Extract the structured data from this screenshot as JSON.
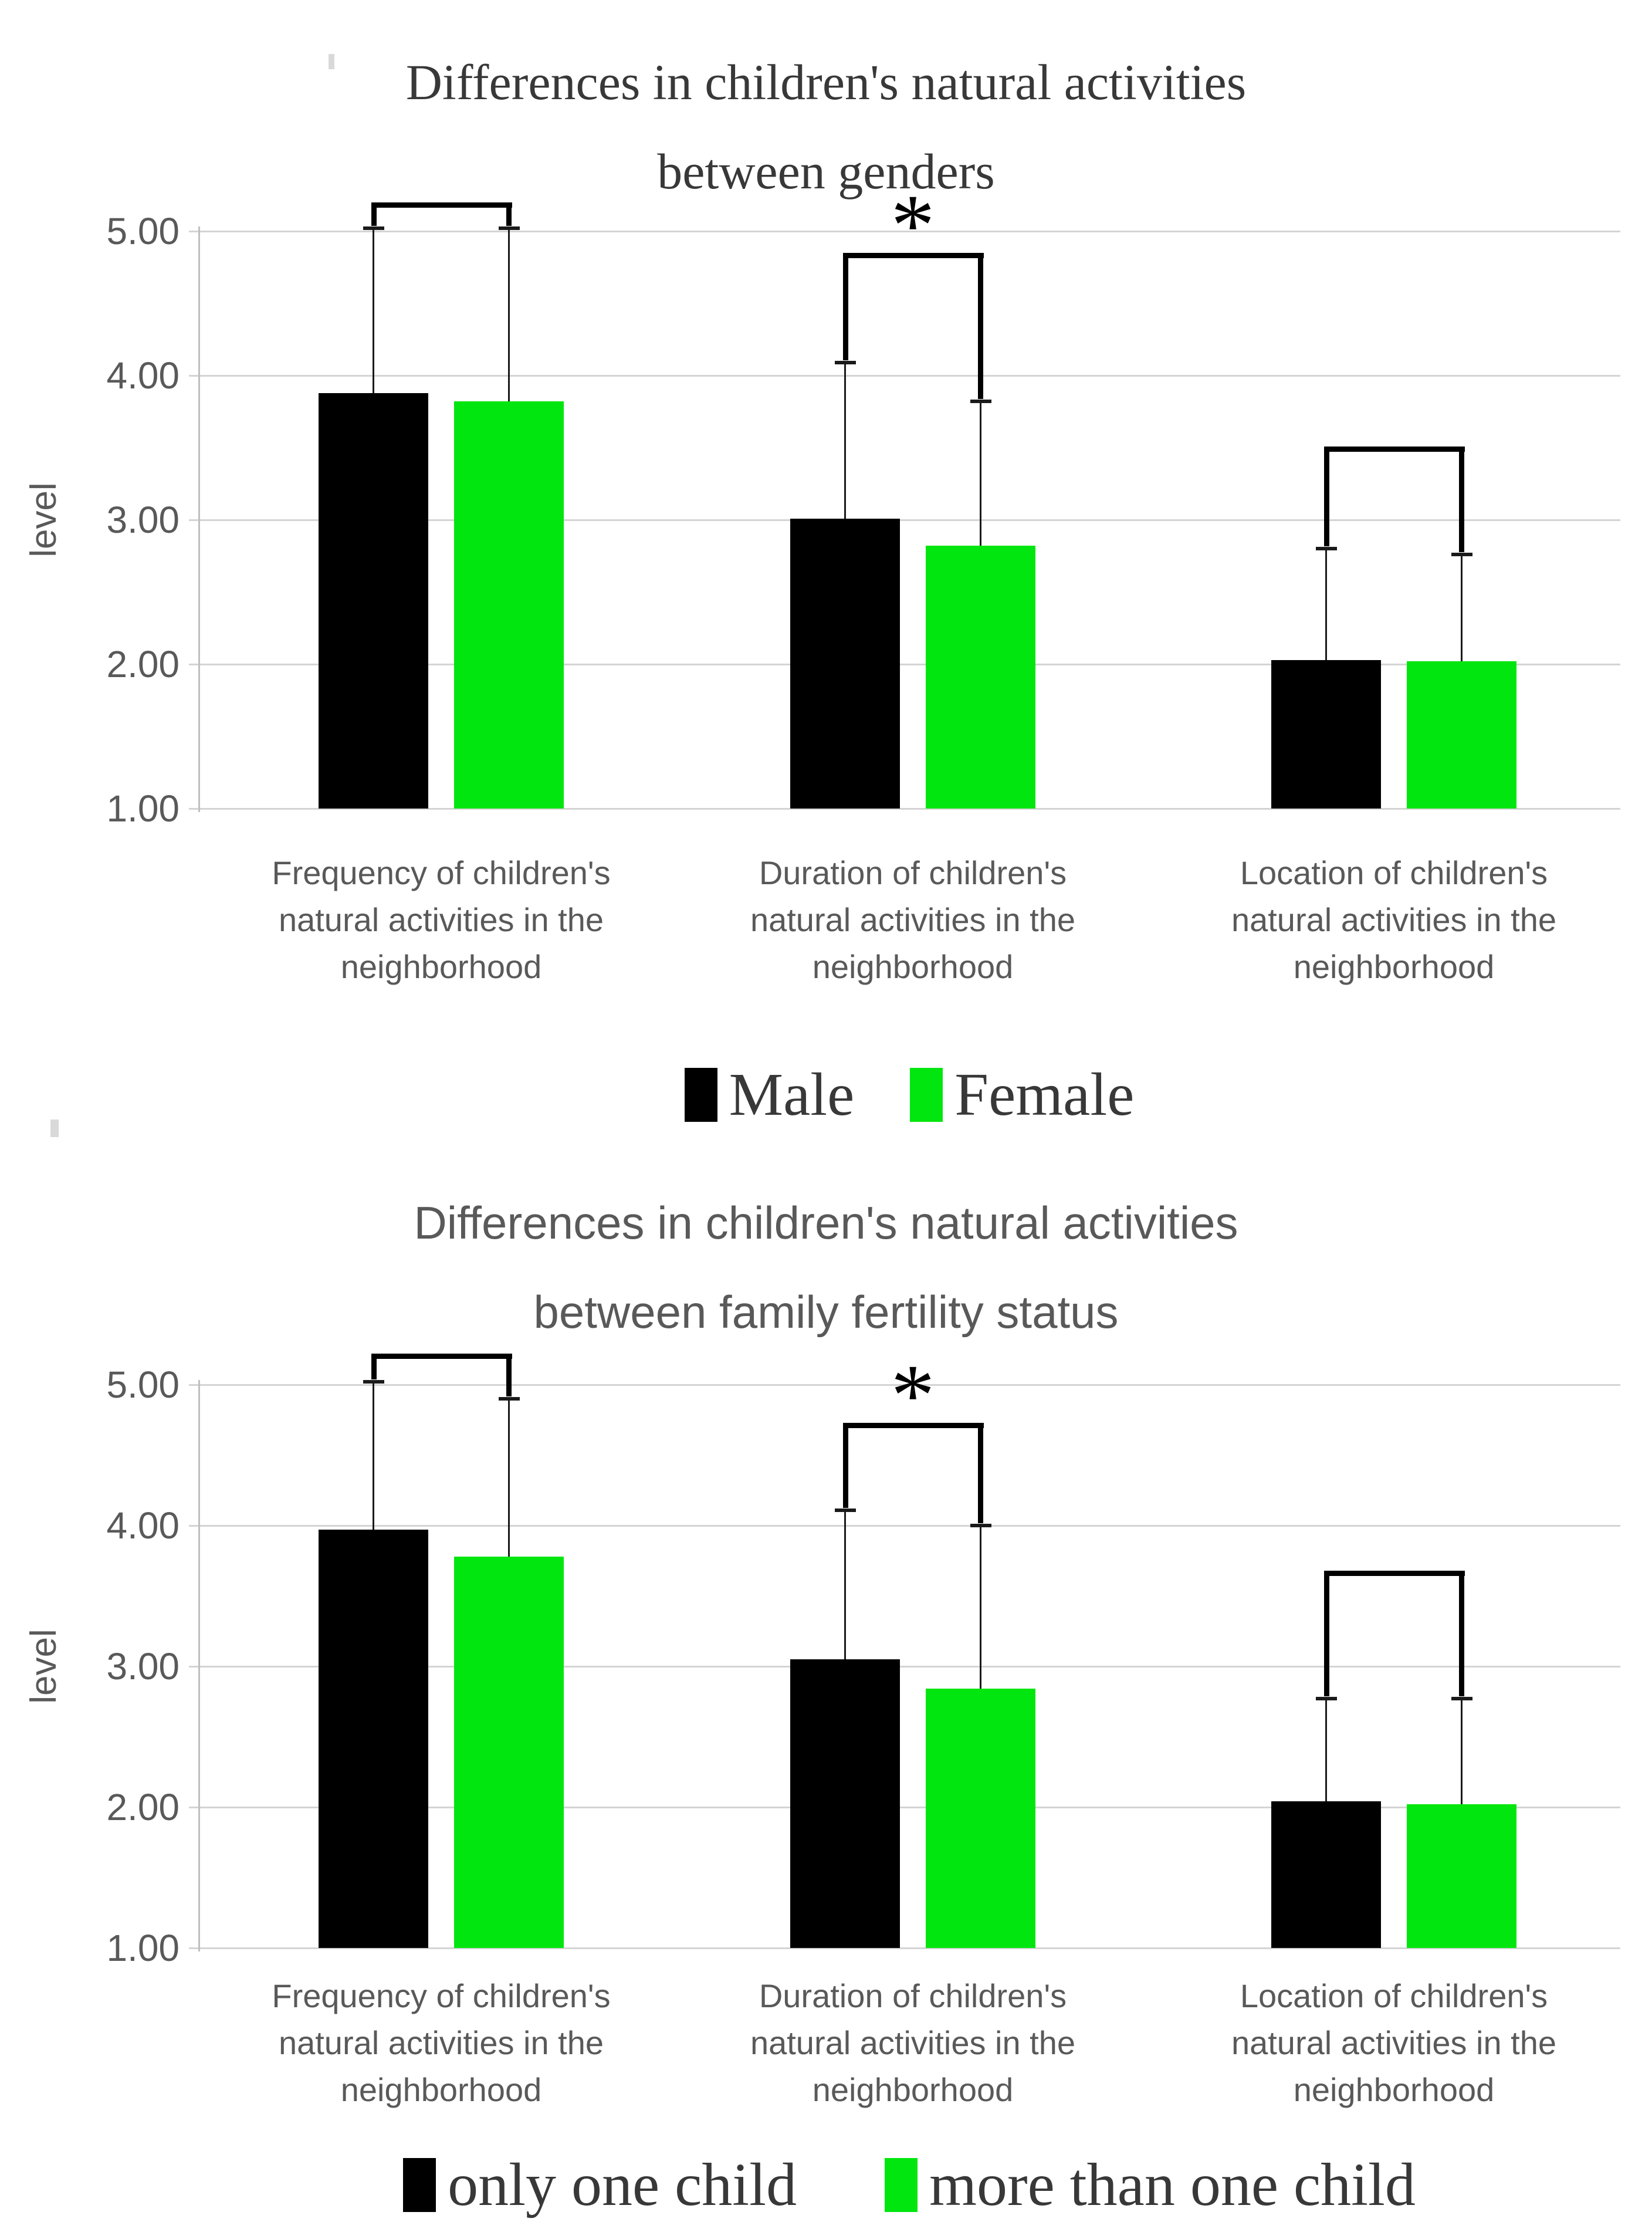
{
  "colors": {
    "background": "#ffffff",
    "bar_black": "#000000",
    "bar_green": "#00e60e",
    "gridline": "#d4d4d4",
    "axis_text": "#595959",
    "title_genders": "#383838",
    "title_fertility": "#595959",
    "legend_text": "#383838",
    "bracket": "#000000"
  },
  "chart_data": [
    {
      "type": "bar",
      "title": "Differences in children's natural activities between genders",
      "title_lines": [
        "Differences in children's natural activities",
        "between genders"
      ],
      "ylabel": "level",
      "ylim": [
        1,
        5
      ],
      "grid": true,
      "legend_position": "bottom",
      "yticks": [
        "5.00",
        "4.00",
        "3.00",
        "2.00",
        "1.00"
      ],
      "category_keys": [
        "frequency",
        "duration",
        "location"
      ],
      "categories": [
        [
          "Frequency of children's",
          "natural activities in the",
          "neighborhood"
        ],
        [
          "Duration of children's",
          "natural activities in the",
          "neighborhood"
        ],
        [
          "Location of children's",
          "natural activities in the",
          "neighborhood"
        ]
      ],
      "series": [
        {
          "name": "Male",
          "color": "#000000",
          "values": [
            3.88,
            3.01,
            2.03
          ],
          "error_top": [
            5.02,
            4.09,
            2.8
          ]
        },
        {
          "name": "Female",
          "color": "#00e60e",
          "values": [
            3.82,
            2.82,
            2.02
          ],
          "error_top": [
            5.02,
            3.82,
            2.76
          ]
        }
      ],
      "brackets": [
        {
          "group": 0,
          "top": 5.2,
          "label": ""
        },
        {
          "group": 1,
          "top": 4.85,
          "label": "*"
        },
        {
          "group": 2,
          "top": 3.51,
          "label": ""
        }
      ],
      "legend": [
        {
          "label": "Male",
          "color": "#000000"
        },
        {
          "label": "Female",
          "color": "#00e60e"
        }
      ]
    },
    {
      "type": "bar",
      "title": "Differences in children's natural activities between family fertility status",
      "title_lines": [
        "Differences in children's natural activities",
        "between family fertility status"
      ],
      "ylabel": "level",
      "ylim": [
        1,
        5
      ],
      "grid": true,
      "legend_position": "bottom",
      "yticks": [
        "5.00",
        "4.00",
        "3.00",
        "2.00",
        "1.00"
      ],
      "category_keys": [
        "frequency",
        "duration",
        "location"
      ],
      "categories": [
        [
          "Frequency of children's",
          "natural activities in the",
          "neighborhood"
        ],
        [
          "Duration of children's",
          "natural activities in the",
          "neighborhood"
        ],
        [
          "Location of children's",
          "natural activities in the",
          "neighborhood"
        ]
      ],
      "series": [
        {
          "name": "only one child",
          "color": "#000000",
          "values": [
            3.97,
            3.05,
            2.04
          ],
          "error_top": [
            5.02,
            4.11,
            2.77
          ]
        },
        {
          "name": "more than one child",
          "color": "#00e60e",
          "values": [
            3.78,
            2.84,
            2.02
          ],
          "error_top": [
            4.9,
            4.0,
            2.77
          ]
        }
      ],
      "brackets": [
        {
          "group": 0,
          "top": 5.22,
          "label": ""
        },
        {
          "group": 1,
          "top": 4.73,
          "label": "*"
        },
        {
          "group": 2,
          "top": 3.68,
          "label": ""
        }
      ],
      "legend": [
        {
          "label": "only one child",
          "color": "#000000"
        },
        {
          "label": "more than one child",
          "color": "#00e60e"
        }
      ]
    }
  ]
}
